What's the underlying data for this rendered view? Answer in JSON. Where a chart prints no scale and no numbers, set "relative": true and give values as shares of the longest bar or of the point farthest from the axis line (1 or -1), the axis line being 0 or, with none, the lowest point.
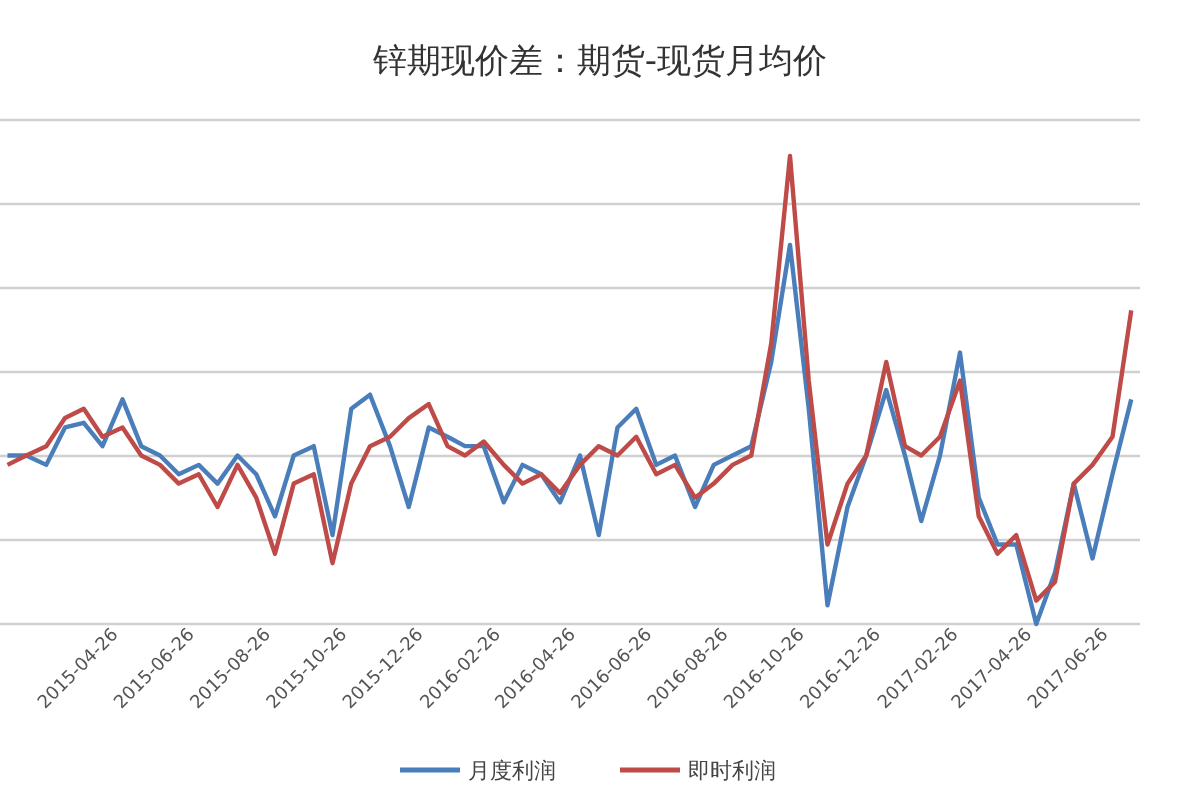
{
  "chart_data": {
    "type": "line",
    "title": "锌期现价差：期货-现货月均价",
    "relative": true,
    "grid": "y",
    "legend": "bottom",
    "marker": "none",
    "line_style": "solid",
    "x": [
      "2015-03-01",
      "2015-03-16",
      "2015-04-01",
      "2015-04-16",
      "2015-05-01",
      "2015-05-16",
      "2015-06-01",
      "2015-06-16",
      "2015-07-01",
      "2015-07-16",
      "2015-08-01",
      "2015-08-16",
      "2015-09-01",
      "2015-09-16",
      "2015-10-01",
      "2015-10-16",
      "2015-11-01",
      "2015-11-16",
      "2015-12-01",
      "2015-12-16",
      "2016-01-01",
      "2016-01-16",
      "2016-02-01",
      "2016-02-16",
      "2016-03-01",
      "2016-03-16",
      "2016-04-01",
      "2016-04-16",
      "2016-05-01",
      "2016-05-16",
      "2016-06-01",
      "2016-06-16",
      "2016-07-01",
      "2016-07-16",
      "2016-08-01",
      "2016-08-16",
      "2016-09-01",
      "2016-09-16",
      "2016-10-01",
      "2016-10-16",
      "2016-11-01",
      "2016-11-16",
      "2016-12-01",
      "2016-12-16",
      "2017-01-01",
      "2017-01-16",
      "2017-02-01",
      "2017-02-16",
      "2017-03-01",
      "2017-03-16",
      "2017-04-01",
      "2017-04-16",
      "2017-05-01",
      "2017-05-16",
      "2017-06-01",
      "2017-06-16",
      "2017-07-01",
      "2017-07-16",
      "2017-08-01",
      "2017-08-16"
    ],
    "xlim": [
      "2015-02-23",
      "2017-08-23"
    ],
    "xticks": [
      "2015-04-26",
      "2015-06-26",
      "2015-08-26",
      "2015-10-26",
      "2015-12-26",
      "2016-02-26",
      "2016-04-26",
      "2016-06-26",
      "2016-08-26",
      "2016-10-26",
      "2016-12-26",
      "2017-02-26",
      "2017-04-26",
      "2017-06-26"
    ],
    "series": [
      {
        "name": "月度利润",
        "color": "#4a7ebb",
        "values": [
          0.36,
          0.36,
          0.34,
          0.42,
          0.43,
          0.38,
          0.48,
          0.38,
          0.36,
          0.32,
          0.34,
          0.3,
          0.36,
          0.32,
          0.23,
          0.36,
          0.38,
          0.19,
          0.46,
          0.49,
          0.38,
          0.25,
          0.42,
          0.4,
          0.38,
          0.38,
          0.26,
          0.34,
          0.32,
          0.26,
          0.36,
          0.19,
          0.42,
          0.46,
          0.34,
          0.36,
          0.25,
          0.34,
          0.36,
          0.38,
          0.56,
          0.81,
          0.46,
          0.04,
          0.25,
          0.36,
          0.5,
          0.36,
          0.22,
          0.36,
          0.58,
          0.27,
          0.17,
          0.17,
          0,
          0.11,
          0.3,
          0.14,
          0.32,
          0.48
        ]
      },
      {
        "name": "即时利润",
        "color": "#be4b48",
        "values": [
          0.34,
          0.36,
          0.38,
          0.44,
          0.46,
          0.4,
          0.42,
          0.36,
          0.34,
          0.3,
          0.32,
          0.25,
          0.34,
          0.27,
          0.15,
          0.3,
          0.32,
          0.13,
          0.3,
          0.38,
          0.4,
          0.44,
          0.47,
          0.38,
          0.36,
          0.39,
          0.34,
          0.3,
          0.32,
          0.28,
          0.34,
          0.38,
          0.36,
          0.4,
          0.32,
          0.34,
          0.27,
          0.3,
          0.34,
          0.36,
          0.6,
          1,
          0.52,
          0.17,
          0.3,
          0.36,
          0.56,
          0.38,
          0.36,
          0.4,
          0.52,
          0.23,
          0.15,
          0.19,
          0.05,
          0.09,
          0.3,
          0.34,
          0.4,
          0.67
        ]
      }
    ]
  }
}
